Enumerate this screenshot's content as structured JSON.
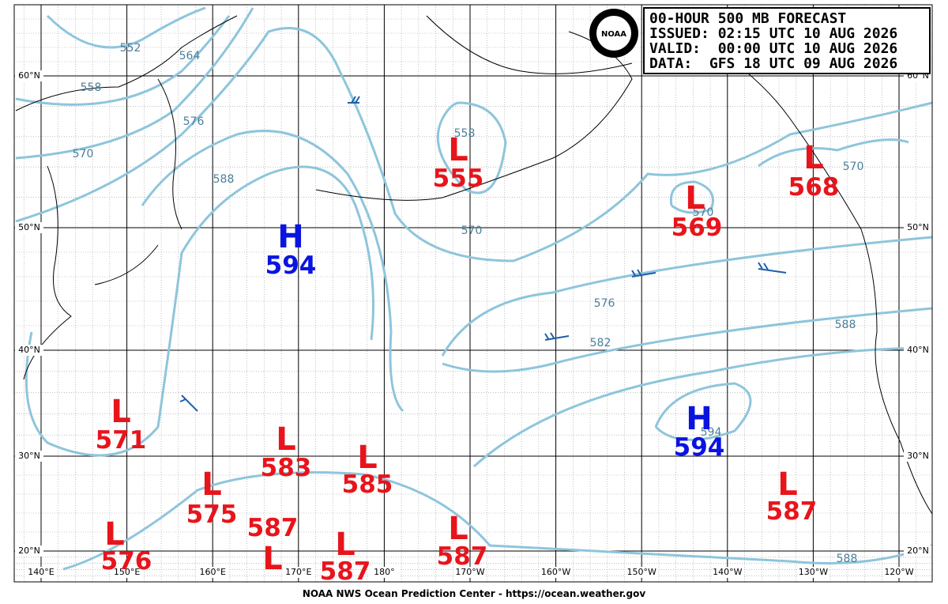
{
  "header": {
    "lines": [
      "00-HOUR 500 MB FORECAST",
      "ISSUED: 02:15 UTC 10 AUG 2026",
      "VALID:  00:00 UTC 10 AUG 2026",
      "DATA:  GFS 18 UTC 09 AUG 2026"
    ]
  },
  "footer": "NOAA NWS Ocean Prediction Center - https://ocean.weather.gov",
  "logo": "NOAA",
  "lat_labels": [
    "60°N",
    "50°N",
    "40°N",
    "30°N",
    "20°N"
  ],
  "lon_labels": [
    "140°E",
    "150°E",
    "160°E",
    "170°E",
    "180°",
    "170°W",
    "160°W",
    "150°W",
    "140°W",
    "130°W",
    "120°W"
  ],
  "centers": [
    {
      "kind": "L",
      "value": "555"
    },
    {
      "kind": "L",
      "value": "569"
    },
    {
      "kind": "L",
      "value": "568"
    },
    {
      "kind": "H",
      "value": "594"
    },
    {
      "kind": "H",
      "value": "594"
    },
    {
      "kind": "L",
      "value": "571"
    },
    {
      "kind": "L",
      "value": "583"
    },
    {
      "kind": "L",
      "value": "585"
    },
    {
      "kind": "L",
      "value": "575"
    },
    {
      "kind": "L",
      "value": "587"
    },
    {
      "kind": "L",
      "value": "587"
    },
    {
      "kind": "L",
      "value": "576"
    },
    {
      "kind": "L",
      "value": "587"
    },
    {
      "kind": "L",
      "value": "587"
    }
  ],
  "contour_labels": [
    "552",
    "564",
    "558",
    "576",
    "570",
    "588",
    "558",
    "570",
    "570",
    "570",
    "576",
    "582",
    "588",
    "594",
    "588"
  ]
}
